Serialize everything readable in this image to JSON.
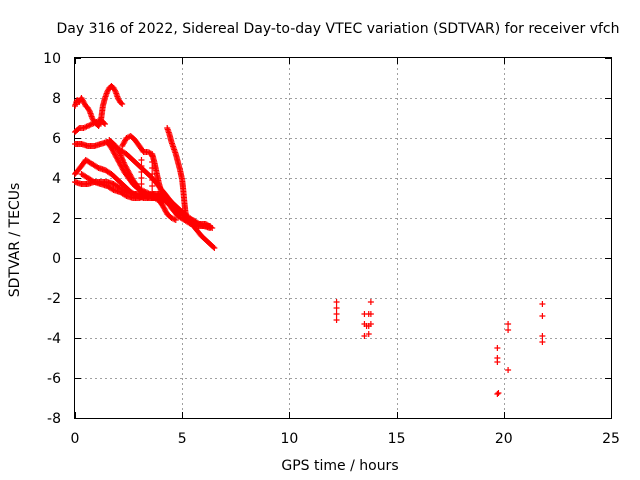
{
  "chart_data": {
    "type": "scatter",
    "title": "Day 316 of 2022, Sidereal Day-to-day VTEC variation (SDTVAR) for receiver vfch",
    "xlabel": "GPS time / hours",
    "ylabel": "SDTVAR / TECUs",
    "xlim": [
      0,
      25
    ],
    "ylim": [
      -8,
      10
    ],
    "xticks": [
      0,
      5,
      10,
      15,
      20,
      25
    ],
    "yticks": [
      -8,
      -6,
      -4,
      -2,
      0,
      2,
      4,
      6,
      8,
      10
    ],
    "xtick_labels": [
      "0",
      "5",
      "10",
      "15",
      "20",
      "25"
    ],
    "ytick_labels": [
      "-8",
      "-6",
      "-4",
      "-2",
      "0",
      "2",
      "4",
      "6",
      "8",
      "10"
    ],
    "grid": true,
    "marker": "+",
    "color": "#ff0000",
    "series": [
      {
        "name": "SDTVAR",
        "traces": [
          [
            [
              0.0,
              7.6
            ],
            [
              0.1,
              7.9
            ],
            [
              0.2,
              7.8
            ],
            [
              0.3,
              8.0
            ],
            [
              0.4,
              7.8
            ],
            [
              0.5,
              7.6
            ],
            [
              0.6,
              7.5
            ],
            [
              0.7,
              7.3
            ],
            [
              0.8,
              7.0
            ],
            [
              0.9,
              6.8
            ],
            [
              1.0,
              6.7
            ],
            [
              1.1,
              6.6
            ],
            [
              1.2,
              6.8
            ],
            [
              1.3,
              7.6
            ],
            [
              1.4,
              8.0
            ],
            [
              1.5,
              8.3
            ],
            [
              1.6,
              8.5
            ],
            [
              1.7,
              8.6
            ],
            [
              1.8,
              8.5
            ],
            [
              1.9,
              8.3
            ],
            [
              2.0,
              8.0
            ],
            [
              2.1,
              7.8
            ],
            [
              2.2,
              7.7
            ]
          ],
          [
            [
              0.0,
              6.3
            ],
            [
              0.2,
              6.5
            ],
            [
              0.4,
              6.5
            ],
            [
              0.6,
              6.6
            ],
            [
              0.8,
              6.7
            ],
            [
              1.0,
              6.8
            ],
            [
              1.2,
              6.9
            ],
            [
              1.4,
              6.7
            ]
          ],
          [
            [
              0.0,
              5.7
            ],
            [
              0.3,
              5.7
            ],
            [
              0.6,
              5.6
            ],
            [
              0.9,
              5.6
            ],
            [
              1.2,
              5.7
            ],
            [
              1.5,
              5.8
            ],
            [
              1.8,
              5.6
            ],
            [
              2.1,
              5.4
            ],
            [
              2.4,
              5.2
            ],
            [
              2.7,
              4.9
            ],
            [
              3.0,
              4.6
            ],
            [
              3.3,
              4.3
            ],
            [
              3.6,
              4.0
            ],
            [
              3.9,
              3.6
            ],
            [
              4.2,
              3.2
            ],
            [
              4.5,
              2.8
            ],
            [
              4.8,
              2.5
            ],
            [
              5.1,
              2.2
            ],
            [
              5.4,
              1.9
            ],
            [
              5.7,
              1.7
            ],
            [
              6.0,
              1.6
            ],
            [
              6.3,
              1.5
            ]
          ],
          [
            [
              0.0,
              4.2
            ],
            [
              0.3,
              4.6
            ],
            [
              0.5,
              4.9
            ],
            [
              0.8,
              4.7
            ],
            [
              1.1,
              4.5
            ],
            [
              1.4,
              4.4
            ],
            [
              1.7,
              4.2
            ],
            [
              2.0,
              3.9
            ],
            [
              2.3,
              3.6
            ],
            [
              2.6,
              3.3
            ],
            [
              2.9,
              3.1
            ],
            [
              3.2,
              3.0
            ],
            [
              3.5,
              3.0
            ],
            [
              3.8,
              3.0
            ],
            [
              4.1,
              2.9
            ],
            [
              4.4,
              2.7
            ],
            [
              4.7,
              2.5
            ],
            [
              5.0,
              2.2
            ],
            [
              5.3,
              1.9
            ],
            [
              5.6,
              1.5
            ],
            [
              5.9,
              1.1
            ],
            [
              6.2,
              0.8
            ],
            [
              6.5,
              0.5
            ]
          ],
          [
            [
              0.0,
              3.8
            ],
            [
              0.3,
              3.7
            ],
            [
              0.6,
              3.7
            ],
            [
              0.9,
              3.8
            ],
            [
              1.2,
              3.8
            ],
            [
              1.5,
              3.8
            ],
            [
              1.8,
              3.7
            ],
            [
              2.1,
              3.5
            ],
            [
              2.4,
              3.3
            ],
            [
              2.7,
              3.2
            ],
            [
              3.0,
              3.2
            ],
            [
              3.3,
              3.2
            ],
            [
              3.6,
              3.1
            ],
            [
              3.9,
              3.1
            ],
            [
              4.2,
              3.0
            ],
            [
              4.5,
              2.5
            ],
            [
              4.8,
              2.1
            ],
            [
              5.1,
              1.9
            ],
            [
              5.4,
              1.7
            ],
            [
              5.7,
              1.6
            ],
            [
              6.0,
              1.6
            ],
            [
              6.3,
              1.6
            ]
          ],
          [
            [
              0.3,
              4.2
            ],
            [
              0.6,
              4.0
            ],
            [
              0.9,
              3.8
            ],
            [
              1.2,
              3.7
            ],
            [
              1.5,
              3.6
            ],
            [
              1.8,
              3.4
            ],
            [
              2.1,
              3.3
            ],
            [
              2.4,
              3.1
            ],
            [
              2.7,
              3.0
            ],
            [
              3.0,
              3.0
            ],
            [
              3.3,
              3.1
            ],
            [
              3.6,
              3.2
            ],
            [
              3.9,
              3.2
            ],
            [
              4.2,
              3.1
            ]
          ],
          [
            [
              1.6,
              5.9
            ],
            [
              1.9,
              5.6
            ],
            [
              2.1,
              5.2
            ],
            [
              2.3,
              4.7
            ],
            [
              2.5,
              4.3
            ],
            [
              2.7,
              3.9
            ],
            [
              2.9,
              3.6
            ],
            [
              3.1,
              3.3
            ],
            [
              3.3,
              3.1
            ],
            [
              3.5,
              3.0
            ],
            [
              3.7,
              3.0
            ],
            [
              3.9,
              2.9
            ],
            [
              4.1,
              2.6
            ],
            [
              4.3,
              2.2
            ],
            [
              4.5,
              2.0
            ],
            [
              4.7,
              1.9
            ]
          ],
          [
            [
              2.2,
              5.6
            ],
            [
              2.4,
              6.0
            ],
            [
              2.6,
              6.1
            ],
            [
              2.8,
              5.9
            ],
            [
              3.0,
              5.6
            ],
            [
              3.2,
              5.3
            ],
            [
              3.4,
              5.3
            ],
            [
              3.6,
              5.2
            ],
            [
              3.7,
              4.8
            ],
            [
              3.8,
              4.3
            ],
            [
              3.9,
              3.8
            ],
            [
              4.0,
              3.4
            ],
            [
              4.1,
              3.1
            ]
          ],
          [
            [
              4.3,
              6.5
            ],
            [
              4.4,
              6.2
            ],
            [
              4.5,
              5.8
            ],
            [
              4.6,
              5.5
            ],
            [
              4.7,
              5.2
            ],
            [
              4.8,
              4.8
            ],
            [
              4.9,
              4.4
            ],
            [
              5.0,
              3.9
            ],
            [
              5.05,
              3.4
            ],
            [
              5.1,
              2.8
            ],
            [
              5.15,
              2.3
            ],
            [
              5.2,
              2.1
            ],
            [
              5.5,
              1.9
            ],
            [
              5.8,
              1.7
            ],
            [
              6.1,
              1.7
            ],
            [
              6.4,
              1.5
            ]
          ],
          [
            [
              1.5,
              5.8
            ],
            [
              1.7,
              5.5
            ],
            [
              1.9,
              5.1
            ],
            [
              2.1,
              4.7
            ],
            [
              2.3,
              4.3
            ],
            [
              2.5,
              4.0
            ],
            [
              2.7,
              3.7
            ],
            [
              2.9,
              3.5
            ],
            [
              3.1,
              3.4
            ],
            [
              3.3,
              3.3
            ],
            [
              3.5,
              3.2
            ],
            [
              3.7,
              3.1
            ],
            [
              3.9,
              3.0
            ],
            [
              4.1,
              2.8
            ]
          ]
        ],
        "points": [
          [
            3.1,
            4.9
          ],
          [
            3.1,
            4.6
          ],
          [
            3.1,
            4.3
          ],
          [
            3.1,
            4.0
          ],
          [
            3.1,
            3.7
          ],
          [
            3.1,
            3.4
          ],
          [
            3.6,
            5.1
          ],
          [
            3.6,
            4.8
          ],
          [
            3.6,
            4.5
          ],
          [
            3.6,
            4.2
          ],
          [
            3.6,
            3.9
          ],
          [
            3.6,
            3.6
          ],
          [
            3.6,
            3.3
          ],
          [
            12.2,
            -2.2
          ],
          [
            12.2,
            -2.5
          ],
          [
            12.2,
            -2.8
          ],
          [
            12.2,
            -3.1
          ],
          [
            13.5,
            -2.8
          ],
          [
            13.5,
            -3.3
          ],
          [
            13.5,
            -3.9
          ],
          [
            13.6,
            -3.4
          ],
          [
            13.7,
            -3.4
          ],
          [
            13.7,
            -2.8
          ],
          [
            13.7,
            -3.8
          ],
          [
            13.8,
            -2.2
          ],
          [
            13.8,
            -2.8
          ],
          [
            13.8,
            -3.3
          ],
          [
            19.7,
            -4.5
          ],
          [
            19.7,
            -5.0
          ],
          [
            19.7,
            -5.2
          ],
          [
            19.7,
            -6.8
          ],
          [
            19.75,
            -6.75
          ],
          [
            20.2,
            -3.3
          ],
          [
            20.2,
            -3.6
          ],
          [
            20.2,
            -5.6
          ],
          [
            21.8,
            -2.3
          ],
          [
            21.8,
            -2.9
          ],
          [
            21.8,
            -3.9
          ],
          [
            21.8,
            -4.2
          ]
        ]
      }
    ]
  }
}
